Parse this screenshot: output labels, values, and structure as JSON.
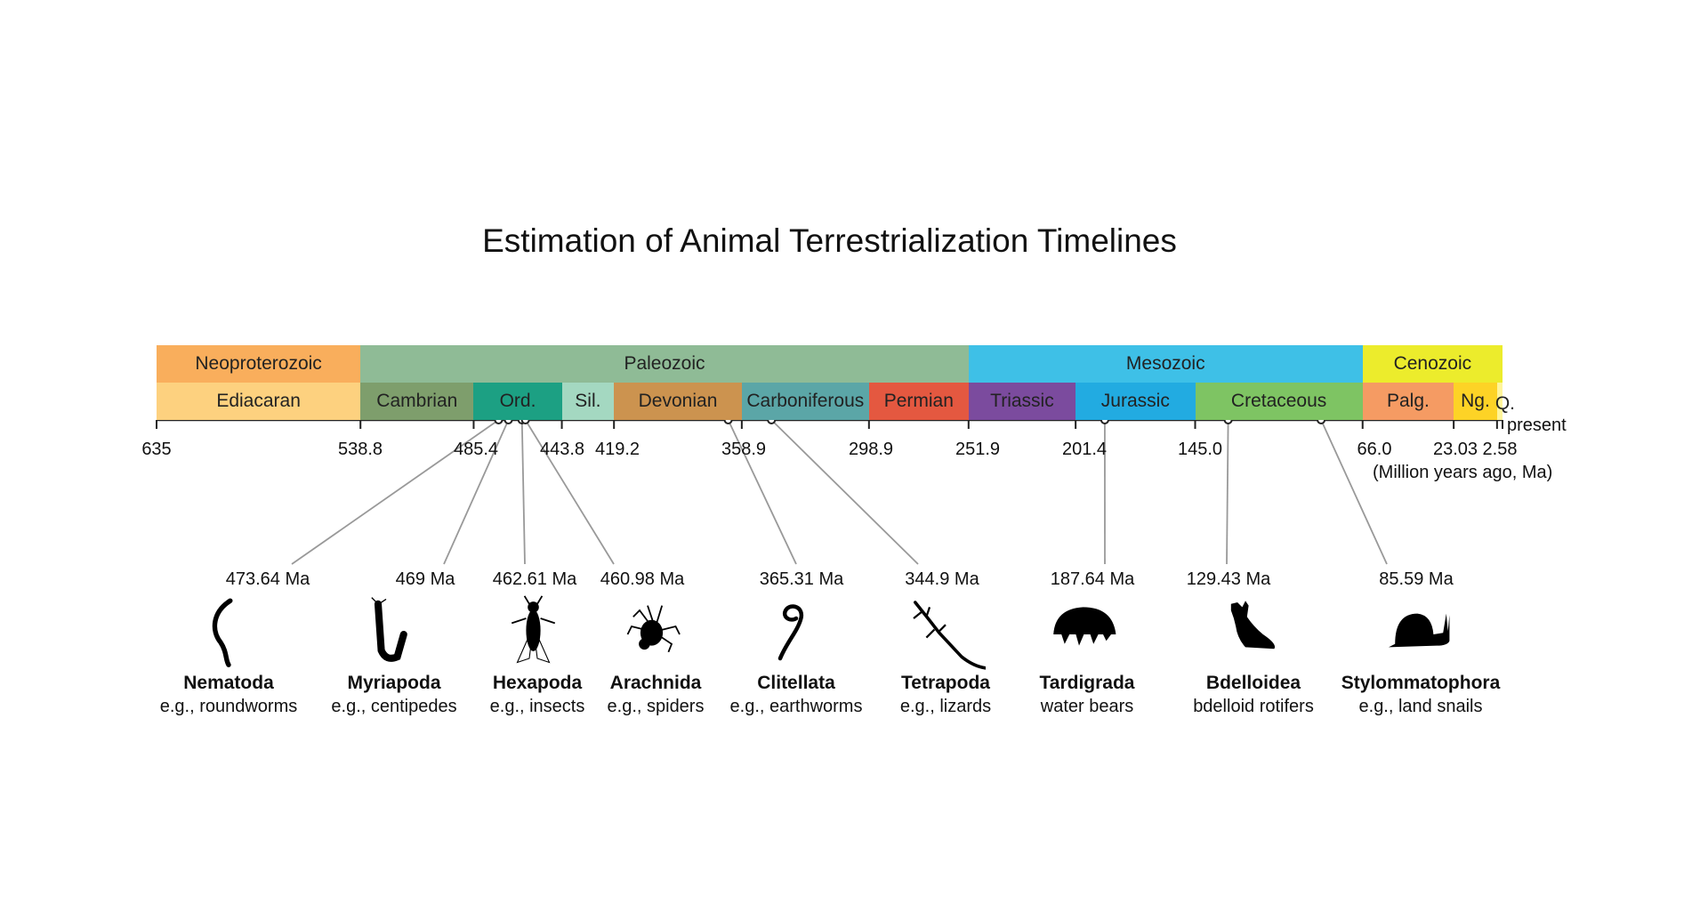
{
  "title": "Estimation of Animal Terrestrialization Timelines",
  "axis": {
    "unit_label": "(Million years ago, Ma)",
    "present_label": "present",
    "range_ma": [
      635,
      0
    ],
    "ticks": [
      "635",
      "538.8",
      "485.4",
      "443.8",
      "419.2",
      "358.9",
      "298.9",
      "251.9",
      "201.4",
      "145.0",
      "66.0",
      "23.03",
      "2.58"
    ]
  },
  "eras": [
    {
      "label": "Neoproterozoic",
      "start": 635,
      "end": 538.8,
      "color": "#f9ae5c"
    },
    {
      "label": "Paleozoic",
      "start": 538.8,
      "end": 251.9,
      "color": "#8fbb96"
    },
    {
      "label": "Mesozoic",
      "start": 251.9,
      "end": 66.0,
      "color": "#3ec0e7"
    },
    {
      "label": "Cenozoic",
      "start": 66.0,
      "end": 0,
      "color": "#ecec2c"
    }
  ],
  "periods": [
    {
      "label": "Ediacaran",
      "start": 635,
      "end": 538.8,
      "color": "#fdd17f"
    },
    {
      "label": "Cambrian",
      "start": 538.8,
      "end": 485.4,
      "color": "#7e9e6c"
    },
    {
      "label": "Ord.",
      "start": 485.4,
      "end": 443.8,
      "color": "#1ca083"
    },
    {
      "label": "Sil.",
      "start": 443.8,
      "end": 419.2,
      "color": "#a4d8c1"
    },
    {
      "label": "Devonian",
      "start": 419.2,
      "end": 358.9,
      "color": "#cc934f"
    },
    {
      "label": "Carboniferous",
      "start": 358.9,
      "end": 298.9,
      "color": "#5ba6a7"
    },
    {
      "label": "Permian",
      "start": 298.9,
      "end": 251.9,
      "color": "#e45840"
    },
    {
      "label": "Triassic",
      "start": 251.9,
      "end": 201.4,
      "color": "#7b4b9e"
    },
    {
      "label": "Jurassic",
      "start": 201.4,
      "end": 145.0,
      "color": "#22abe1"
    },
    {
      "label": "Cretaceous",
      "start": 145.0,
      "end": 66.0,
      "color": "#7ec463"
    },
    {
      "label": "Palg.",
      "start": 66.0,
      "end": 23.03,
      "color": "#f59b63"
    },
    {
      "label": "Ng.",
      "start": 23.03,
      "end": 2.58,
      "color": "#fdd326"
    },
    {
      "label": "Q.",
      "start": 2.58,
      "end": 0,
      "color": "#fff59b"
    }
  ],
  "taxa": [
    {
      "date": "473.64 Ma",
      "ma": 473.64,
      "name": "Nematoda",
      "example": "e.g., roundworms",
      "icon": "nematode-icon"
    },
    {
      "date": "469 Ma",
      "ma": 469,
      "name": "Myriapoda",
      "example": "e.g., centipedes",
      "icon": "centipede-icon"
    },
    {
      "date": "462.61 Ma",
      "ma": 462.61,
      "name": "Hexapoda",
      "example": "e.g., insects",
      "icon": "fly-icon"
    },
    {
      "date": "460.98 Ma",
      "ma": 460.98,
      "name": "Arachnida",
      "example": "e.g., spiders",
      "icon": "spider-icon"
    },
    {
      "date": "365.31 Ma",
      "ma": 365.31,
      "name": "Clitellata",
      "example": "e.g., earthworms",
      "icon": "earthworm-icon"
    },
    {
      "date": "344.9 Ma",
      "ma": 344.9,
      "name": "Tetrapoda",
      "example": "e.g., lizards",
      "icon": "lizard-icon"
    },
    {
      "date": "187.64 Ma",
      "ma": 187.64,
      "name": "Tardigrada",
      "example": "water bears",
      "icon": "tardigrade-icon"
    },
    {
      "date": "129.43 Ma",
      "ma": 129.43,
      "name": "Bdelloidea",
      "example": "bdelloid rotifers",
      "icon": "rotifer-icon"
    },
    {
      "date": "85.59 Ma",
      "ma": 85.59,
      "name": "Stylommatophora",
      "example": "e.g., land snails",
      "icon": "snail-icon"
    }
  ]
}
